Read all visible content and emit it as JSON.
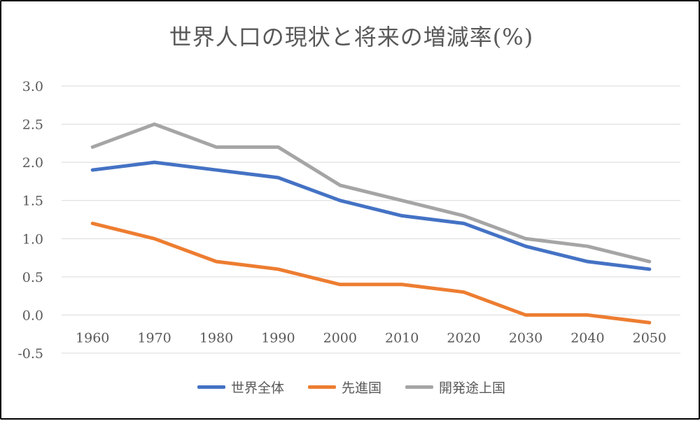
{
  "chart_data": {
    "type": "line",
    "title": "世界人口の現状と将来の増減率(%)",
    "xlabel": "",
    "ylabel": "",
    "categories": [
      "1960",
      "1970",
      "1980",
      "1990",
      "2000",
      "2010",
      "2020",
      "2030",
      "2040",
      "2050"
    ],
    "ylim": [
      -0.5,
      3.0
    ],
    "yticks": [
      3.0,
      2.5,
      2.0,
      1.5,
      1.0,
      0.5,
      0.0,
      -0.5
    ],
    "ytick_labels": [
      "3.0",
      "2.5",
      "2.0",
      "1.5",
      "1.0",
      "0.5",
      "0.0",
      "-0.5"
    ],
    "grid": true,
    "legend_position": "bottom",
    "series": [
      {
        "name": "世界全体",
        "color": "#4472C4",
        "values": [
          1.9,
          2.0,
          1.9,
          1.8,
          1.5,
          1.3,
          1.2,
          0.9,
          0.7,
          0.6
        ]
      },
      {
        "name": "先進国",
        "color": "#ED7D31",
        "values": [
          1.2,
          1.0,
          0.7,
          0.6,
          0.4,
          0.4,
          0.3,
          0.0,
          0.0,
          -0.1
        ]
      },
      {
        "name": "開発途上国",
        "color": "#A5A5A5",
        "values": [
          2.2,
          2.5,
          2.2,
          2.2,
          1.7,
          1.5,
          1.3,
          1.0,
          0.9,
          0.7
        ]
      }
    ]
  }
}
